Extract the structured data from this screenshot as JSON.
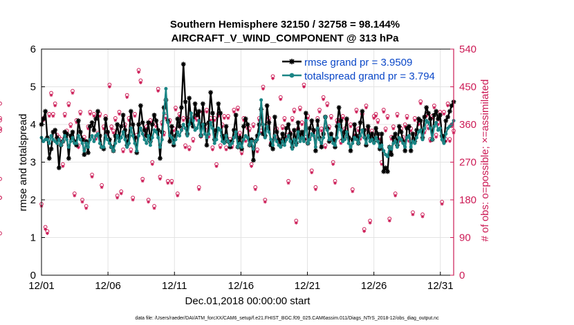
{
  "chart_data": {
    "type": "line",
    "title": "Southern Hemisphere 32150 / 32758 = 98.144%",
    "subtitle": "AIRCRAFT_V_WIND_COMPONENT @ 313 hPa",
    "xlabel": "Dec.01,2018 00:00:00 start",
    "ylabel_left": "rmse and totalspread",
    "ylabel_right": "# of obs: o=possible; ×=assimilated",
    "footnote": "data file: /Users/raeder/DAI/ATM_forcXX/CAM6_setup/f.e21.FHIST_BGC.f09_025.CAM6assim.011/Diags_NTrS_2018-12/obs_diag_output.nc",
    "xlim": [
      0,
      31
    ],
    "ylim": [
      0,
      6
    ],
    "ylim_right": [
      0,
      540
    ],
    "x_ticks": [
      0,
      5,
      10,
      15,
      20,
      25,
      30
    ],
    "x_tick_labels": [
      "12/01",
      "12/06",
      "12/11",
      "12/16",
      "12/21",
      "12/26",
      "12/31"
    ],
    "y_ticks": [
      "0",
      "1",
      "2",
      "3",
      "4",
      "5",
      "6"
    ],
    "y_ticks_right": [
      "0",
      "90",
      "180",
      "270",
      "360",
      "450",
      "540"
    ],
    "grid": true,
    "legend_position": "top-right",
    "colors": {
      "rmse": "#000000",
      "spread": "#1a8585",
      "obs": "#cc1a55",
      "legend_text": "#0a47c8"
    },
    "series": [
      {
        "name": "rmse grand pr = 3.9509",
        "values": [
          4.0,
          4.15,
          4.35,
          3.65,
          3.1,
          3.35,
          3.8,
          3.85,
          3.65,
          2.85,
          3.45,
          3.55,
          3.8,
          3.75,
          3.1,
          3.7,
          3.8,
          3.55,
          3.45,
          4.1,
          3.8,
          3.6,
          3.2,
          3.55,
          3.25,
          3.95,
          4.05,
          3.85,
          4.15,
          4.35,
          3.7,
          3.4,
          3.35,
          4.15,
          3.8,
          3.6,
          3.4,
          3.3,
          3.7,
          4.0,
          3.65,
          3.95,
          4.25,
          3.85,
          3.45,
          3.7,
          4.35,
          4.0,
          3.65,
          3.25,
          4.0,
          4.5,
          4.05,
          3.85,
          3.7,
          4.05,
          3.55,
          4.0,
          4.25,
          4.1,
          3.85,
          3.1,
          3.8,
          4.45,
          4.65,
          4.1,
          3.55,
          3.95,
          3.45,
          3.7,
          4.15,
          3.95,
          4.45,
          5.6,
          4.6,
          3.75,
          4.7,
          4.05,
          3.95,
          4.55,
          4.25,
          4.35,
          3.7,
          4.55,
          4.0,
          3.45,
          4.05,
          4.85,
          4.3,
          3.6,
          3.85,
          4.55,
          4.3,
          3.7,
          3.55,
          3.95,
          3.55,
          3.4,
          3.55,
          3.85,
          4.25,
          3.4,
          3.65,
          3.35,
          3.95,
          4.15,
          4.0,
          3.45,
          3.6,
          3.05,
          3.55,
          3.7,
          4.0,
          4.4,
          3.75,
          3.7,
          4.5,
          4.05,
          3.45,
          3.35,
          4.2,
          3.8,
          3.6,
          3.45,
          3.75,
          3.55,
          3.9,
          4.0,
          3.75,
          3.4,
          3.85,
          3.5,
          4.05,
          3.65,
          3.8,
          3.6,
          4.3,
          3.5,
          3.9,
          4.1,
          3.85,
          3.3,
          4.1,
          3.65,
          3.4,
          3.75,
          4.2,
          3.9,
          3.55,
          3.75,
          3.6,
          3.4,
          3.95,
          4.45,
          4.1,
          3.6,
          3.8,
          4.15,
          3.65,
          3.3,
          3.6,
          4.0,
          3.7,
          3.5,
          4.05,
          4.35,
          3.85,
          3.45,
          3.95,
          3.65,
          3.75,
          3.55,
          3.9,
          3.75,
          3.35,
          3.75,
          2.75,
          2.85,
          2.75,
          3.4,
          3.2,
          3.65,
          3.75,
          3.45,
          3.95,
          3.8,
          3.55,
          3.3,
          3.9,
          3.95,
          3.3,
          3.75,
          3.55,
          3.85,
          4.15,
          4.1,
          3.65,
          4.2,
          4.45,
          4.3,
          4.15,
          3.6,
          4.25,
          4.35,
          4.15,
          4.25,
          3.7,
          3.55,
          4.1,
          4.2,
          4.35,
          4.5,
          4.6
        ],
        "style": "line-star"
      },
      {
        "name": "totalspread grand pr = 3.794",
        "values": [
          3.65,
          3.55,
          3.6,
          3.6,
          3.5,
          3.7,
          3.6,
          3.55,
          3.5,
          3.6,
          3.45,
          3.55,
          3.7,
          3.6,
          3.4,
          3.55,
          3.65,
          3.5,
          3.5,
          3.7,
          3.6,
          3.5,
          3.3,
          3.5,
          3.4,
          3.6,
          3.7,
          3.55,
          3.7,
          3.75,
          3.5,
          3.4,
          3.4,
          3.7,
          3.6,
          3.5,
          3.4,
          3.3,
          3.5,
          3.7,
          3.55,
          3.65,
          3.8,
          3.6,
          3.4,
          3.5,
          3.9,
          3.7,
          3.5,
          3.3,
          3.7,
          3.9,
          3.75,
          3.6,
          3.5,
          3.7,
          3.45,
          3.65,
          3.85,
          3.8,
          3.65,
          3.4,
          3.6,
          4.3,
          4.95,
          4.05,
          3.7,
          3.65,
          3.5,
          3.6,
          3.8,
          3.7,
          3.85,
          4.0,
          3.9,
          3.7,
          4.0,
          4.3,
          4.1,
          3.85,
          3.9,
          4.1,
          3.7,
          4.0,
          3.75,
          3.65,
          3.75,
          4.05,
          3.9,
          3.5,
          3.6,
          3.9,
          3.85,
          3.55,
          3.5,
          3.7,
          3.55,
          3.45,
          3.5,
          3.65,
          3.8,
          3.4,
          3.5,
          3.4,
          3.6,
          3.7,
          3.65,
          3.45,
          3.55,
          3.35,
          3.55,
          3.6,
          3.75,
          4.65,
          4.0,
          3.65,
          3.95,
          3.8,
          3.6,
          3.45,
          3.7,
          3.55,
          3.45,
          3.4,
          3.55,
          3.45,
          3.6,
          3.7,
          3.55,
          3.35,
          3.6,
          3.45,
          3.8,
          3.55,
          3.65,
          3.55,
          4.1,
          3.5,
          3.6,
          3.75,
          3.7,
          3.4,
          3.9,
          3.6,
          3.5,
          3.65,
          4.2,
          3.85,
          3.6,
          3.65,
          3.5,
          3.45,
          3.65,
          4.0,
          3.85,
          3.55,
          3.6,
          3.8,
          3.5,
          3.4,
          3.5,
          3.65,
          3.6,
          3.5,
          3.7,
          3.85,
          3.65,
          3.5,
          3.7,
          3.55,
          3.6,
          3.5,
          3.65,
          3.55,
          3.4,
          3.45,
          3.3,
          3.2,
          3.15,
          3.4,
          3.35,
          3.5,
          3.55,
          3.4,
          3.65,
          3.6,
          3.5,
          3.4,
          3.65,
          3.7,
          3.4,
          3.55,
          3.5,
          3.65,
          3.8,
          3.85,
          3.6,
          3.9,
          4.1,
          4.05,
          3.9,
          3.6,
          3.95,
          4.05,
          3.85,
          3.9,
          3.6,
          3.5,
          3.75,
          3.9,
          3.95,
          4.0,
          4.1
        ],
        "style": "line-dot"
      },
      {
        "name": "obs possible",
        "values": [
          170,
          375,
          115,
          105,
          385,
          435,
          385,
          410,
          335,
          330,
          325,
          265,
          385,
          345,
          410,
          360,
          440,
          195,
          370,
          310,
          390,
          180,
          330,
          165,
          355,
          390,
          240,
          385,
          330,
          340,
          385,
          215,
          355,
          380,
          340,
          455,
          355,
          345,
          375,
          190,
          390,
          200,
          300,
          360,
          430,
          375,
          300,
          185,
          385,
          335,
          490,
          465,
          230,
          340,
          355,
          180,
          370,
          270,
          165,
          360,
          445,
          235,
          365,
          340,
          380,
          225,
          370,
          225,
          350,
          400,
          195,
          385,
          350,
          375,
          310,
          375,
          305,
          375,
          325,
          380,
          375,
          210,
          335,
          390,
          350,
          395,
          335,
          375,
          305,
          375,
          265,
          385,
          310,
          360,
          380,
          305,
          380,
          325,
          310,
          395,
          335,
          400,
          340,
          295,
          375,
          325,
          355,
          350,
          265,
          360,
          210,
          300,
          375,
          345,
          450,
          180,
          355,
          375,
          315,
          475,
          330,
          350,
          320,
          425,
          355,
          375,
          335,
          225,
          340,
          375,
          395,
          130,
          350,
          400,
          365,
          455,
          330,
          380,
          330,
          250,
          345,
          210,
          375,
          395,
          350,
          425,
          310,
          410,
          355,
          380,
          270,
          225,
          370,
          370,
          320,
          380,
          350,
          370,
          330,
          360,
          205,
          340,
          395,
          350,
          330,
          385,
          110,
          405,
          350,
          130,
          345,
          380,
          385,
          370,
          330,
          270,
          395,
          350,
          380,
          135,
          330,
          355,
          195,
          385,
          325,
          350,
          330,
          360,
          380,
          325,
          350,
          150,
          375,
          340,
          365,
          415,
          145,
          345,
          385,
          355,
          325,
          380,
          405,
          335,
          365,
          390,
          175,
          390,
          325,
          410,
          325,
          360,
          345,
          370,
          230,
          185,
          350,
          410,
          100,
          345,
          375,
          350,
          185
        ],
        "style": "marker-o"
      },
      {
        "name": "obs assimilated",
        "values": [
          165,
          370,
          110,
          100,
          380,
          430,
          380,
          405,
          330,
          325,
          320,
          260,
          380,
          340,
          405,
          355,
          435,
          190,
          365,
          305,
          385,
          175,
          325,
          160,
          350,
          385,
          235,
          380,
          325,
          335,
          380,
          210,
          350,
          375,
          335,
          450,
          350,
          340,
          370,
          185,
          385,
          195,
          295,
          355,
          425,
          370,
          295,
          180,
          380,
          330,
          485,
          460,
          225,
          335,
          350,
          175,
          365,
          265,
          160,
          355,
          440,
          230,
          360,
          335,
          375,
          220,
          365,
          220,
          345,
          395,
          190,
          380,
          345,
          370,
          305,
          370,
          300,
          370,
          320,
          375,
          370,
          205,
          330,
          385,
          345,
          390,
          330,
          370,
          300,
          370,
          260,
          380,
          305,
          355,
          375,
          300,
          375,
          320,
          305,
          390,
          330,
          395,
          335,
          290,
          370,
          320,
          350,
          345,
          260,
          355,
          205,
          295,
          370,
          340,
          445,
          175,
          350,
          370,
          310,
          470,
          325,
          345,
          315,
          420,
          350,
          370,
          330,
          220,
          335,
          370,
          390,
          125,
          345,
          395,
          360,
          450,
          325,
          375,
          325,
          245,
          340,
          205,
          370,
          390,
          345,
          420,
          305,
          405,
          350,
          375,
          265,
          220,
          365,
          365,
          315,
          375,
          345,
          365,
          325,
          355,
          200,
          335,
          390,
          345,
          325,
          380,
          105,
          400,
          345,
          125,
          340,
          375,
          380,
          365,
          325,
          265,
          390,
          345,
          375,
          130,
          325,
          350,
          190,
          380,
          320,
          345,
          325,
          355,
          375,
          320,
          345,
          145,
          370,
          335,
          360,
          410,
          140,
          340,
          380,
          350,
          320,
          375,
          400,
          330,
          360,
          385,
          170,
          385,
          320,
          405,
          320,
          355,
          340,
          365,
          225,
          180,
          345,
          405,
          95,
          340,
          370,
          345,
          180
        ],
        "style": "marker-x"
      }
    ]
  }
}
